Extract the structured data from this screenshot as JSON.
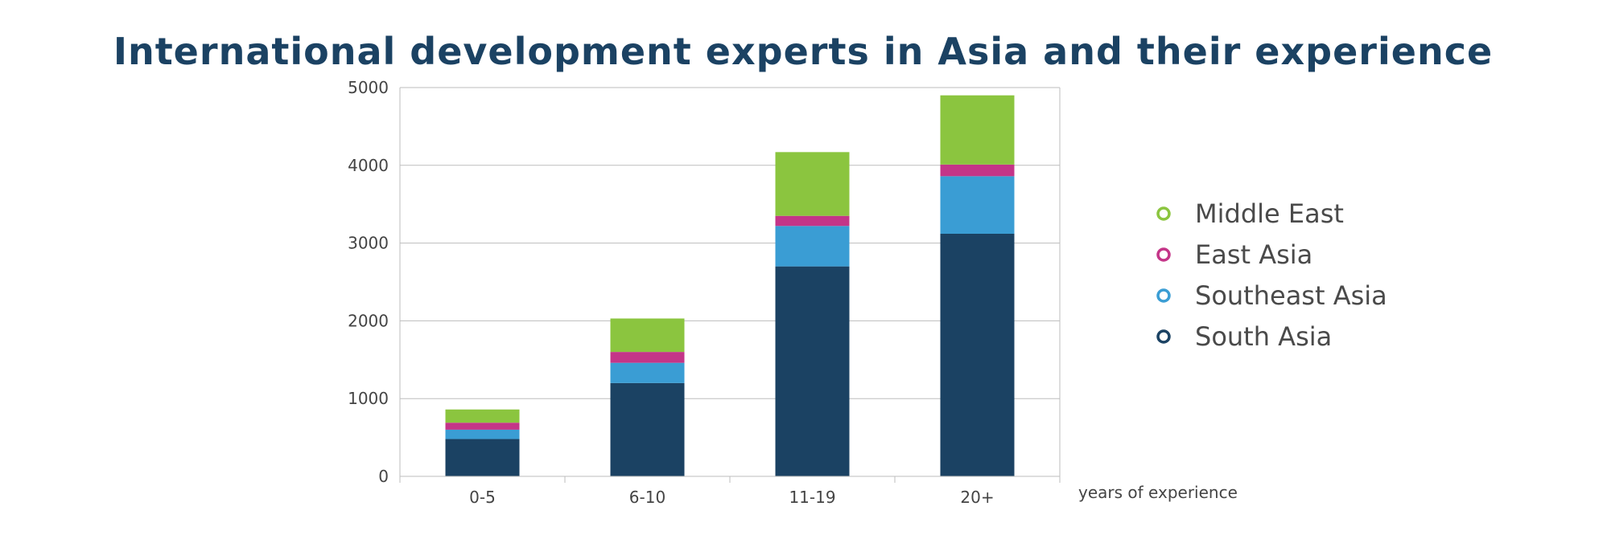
{
  "chart_data": {
    "type": "bar",
    "stacked": true,
    "title": "International development experts in Asia and their experience",
    "xlabel": "years of experience",
    "ylabel": "",
    "categories": [
      "0-5",
      "6-10",
      "11-19",
      "20+"
    ],
    "ylim": [
      0,
      5000
    ],
    "yticks": [
      0,
      1000,
      2000,
      3000,
      4000,
      5000
    ],
    "grid": true,
    "legend_position": "right",
    "series": [
      {
        "name": "South Asia",
        "color": "#1b4263",
        "values": [
          480,
          1200,
          2700,
          3120
        ]
      },
      {
        "name": "Southeast Asia",
        "color": "#3a9dd4",
        "values": [
          120,
          260,
          520,
          740
        ]
      },
      {
        "name": "East Asia",
        "color": "#c43588",
        "values": [
          90,
          140,
          130,
          150
        ]
      },
      {
        "name": "Middle East",
        "color": "#8bc53f",
        "values": [
          170,
          430,
          820,
          890
        ]
      }
    ],
    "legend_order": [
      "Middle East",
      "East Asia",
      "Southeast Asia",
      "South Asia"
    ]
  }
}
